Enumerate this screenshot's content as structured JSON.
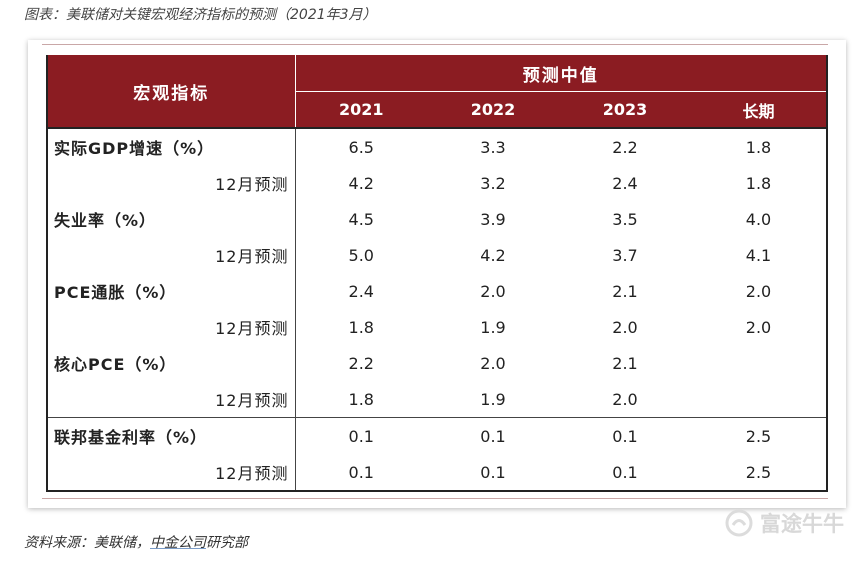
{
  "caption": "图表：美联储对关键宏观经济指标的预测（2021年3月）",
  "table": {
    "label_header": "宏观指标",
    "group_header": "预测中值",
    "columns": [
      "2021",
      "2022",
      "2023",
      "长期"
    ],
    "rows": [
      {
        "label": "实际GDP增速（%）",
        "values": [
          "6.5",
          "3.3",
          "2.2",
          "1.8"
        ]
      },
      {
        "label": "12月预测",
        "values": [
          "4.2",
          "3.2",
          "2.4",
          "1.8"
        ]
      },
      {
        "label": "失业率（%）",
        "values": [
          "4.5",
          "3.9",
          "3.5",
          "4.0"
        ]
      },
      {
        "label": "12月预测",
        "values": [
          "5.0",
          "4.2",
          "3.7",
          "4.1"
        ]
      },
      {
        "label": "PCE通胀（%）",
        "values": [
          "2.4",
          "2.0",
          "2.1",
          "2.0"
        ]
      },
      {
        "label": "12月预测",
        "values": [
          "1.8",
          "1.9",
          "2.0",
          "2.0"
        ]
      },
      {
        "label": "核心PCE（%）",
        "values": [
          "2.2",
          "2.0",
          "2.1",
          ""
        ]
      },
      {
        "label": "12月预测",
        "values": [
          "1.8",
          "1.9",
          "2.0",
          ""
        ]
      },
      {
        "label": "联邦基金利率（%）",
        "values": [
          "0.1",
          "0.1",
          "0.1",
          "2.5"
        ]
      },
      {
        "label": "12月预测",
        "values": [
          "0.1",
          "0.1",
          "0.1",
          "2.5"
        ]
      }
    ]
  },
  "source": {
    "prefix": "资料来源：美联储，",
    "link": "中金公司",
    "suffix": "研究部"
  },
  "watermark": {
    "text": "富途牛牛",
    "icon": "futu-logo-icon"
  },
  "colors": {
    "header_bg": "#8b1c22",
    "text": "#222222"
  }
}
